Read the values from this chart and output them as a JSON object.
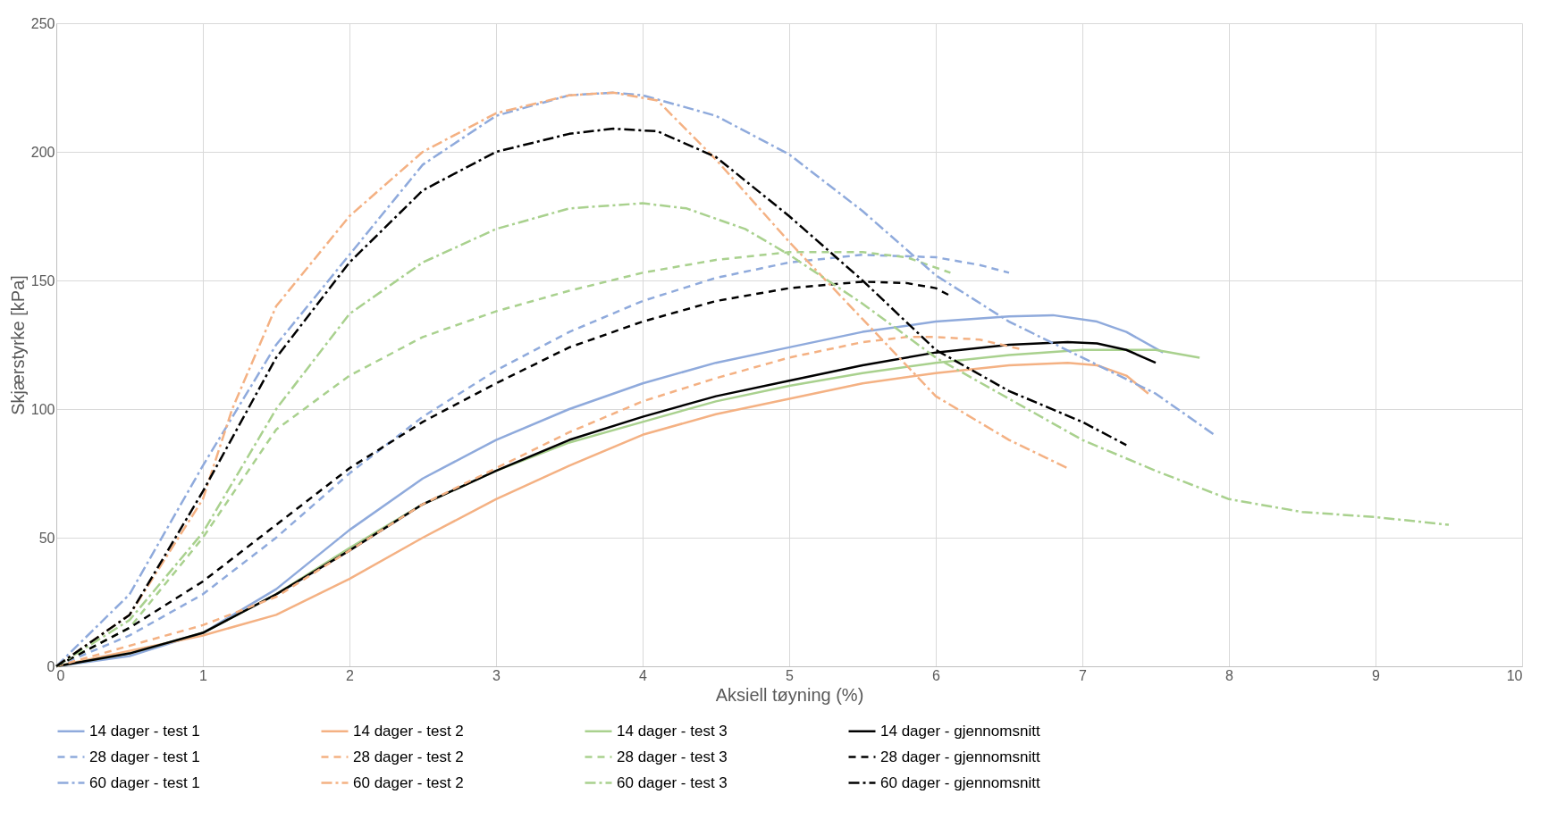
{
  "chart_data": {
    "type": "line",
    "xlabel": "Aksiell tøyning (%)",
    "ylabel": "Skjærstyrke [kPa]",
    "xlim": [
      0,
      10
    ],
    "xticks": [
      0,
      1,
      2,
      3,
      4,
      5,
      6,
      7,
      8,
      9,
      10
    ],
    "ylim": [
      0,
      250
    ],
    "yticks": [
      0,
      50,
      100,
      150,
      200,
      250
    ],
    "grid": true,
    "legend": "bottom",
    "series": [
      {
        "name": "14 dager - test 1",
        "color": "#8faadc",
        "line_style": "solid",
        "x": [
          0,
          0.5,
          1,
          1.5,
          2,
          2.5,
          3,
          3.5,
          4,
          4.5,
          5,
          5.5,
          6,
          6.5,
          6.8,
          7.1,
          7.3,
          7.55
        ],
        "values": [
          0,
          4,
          13,
          30,
          53,
          73,
          88,
          100,
          110,
          118,
          124,
          130,
          134,
          136,
          136.5,
          134,
          130,
          122
        ]
      },
      {
        "name": "14 dager - test 2",
        "color": "#f4b183",
        "line_style": "solid",
        "x": [
          0,
          0.5,
          1,
          1.5,
          2,
          2.5,
          3,
          3.5,
          4,
          4.5,
          5,
          5.5,
          6,
          6.5,
          6.9,
          7.1,
          7.3,
          7.45
        ],
        "values": [
          0,
          6,
          12,
          20,
          34,
          50,
          65,
          78,
          90,
          98,
          104,
          110,
          114,
          117,
          118,
          117,
          113,
          106
        ]
      },
      {
        "name": "14 dager - test 3",
        "color": "#a9d18e",
        "line_style": "solid",
        "x": [
          0,
          0.5,
          1,
          1.5,
          2,
          2.5,
          3,
          3.5,
          4,
          4.5,
          5,
          5.5,
          6,
          6.5,
          7,
          7.5,
          7.8
        ],
        "values": [
          0,
          5,
          13,
          28,
          46,
          63,
          76,
          87,
          95,
          103,
          109,
          114,
          118,
          121,
          123,
          123,
          120
        ]
      },
      {
        "name": "14 dager - gjennomsnitt",
        "color": "#000000",
        "line_style": "solid",
        "x": [
          0,
          0.5,
          1,
          1.5,
          2,
          2.5,
          3,
          3.5,
          4,
          4.5,
          5,
          5.5,
          6,
          6.5,
          6.9,
          7.1,
          7.3,
          7.5
        ],
        "values": [
          0,
          5,
          13,
          28,
          45,
          63,
          76,
          88,
          97,
          105,
          111,
          117,
          122,
          125,
          126,
          125.5,
          123,
          118
        ]
      },
      {
        "name": "28 dager - test 1",
        "color": "#8faadc",
        "line_style": "dashed",
        "x": [
          0,
          0.5,
          1,
          1.5,
          2,
          2.5,
          3,
          3.5,
          4,
          4.5,
          5,
          5.5,
          6,
          6.3,
          6.5
        ],
        "values": [
          0,
          12,
          28,
          50,
          75,
          97,
          115,
          130,
          142,
          151,
          157,
          160,
          159,
          156,
          153
        ]
      },
      {
        "name": "28 dager - test 2",
        "color": "#f4b183",
        "line_style": "dashed",
        "x": [
          0,
          0.5,
          1,
          1.5,
          2,
          2.5,
          3,
          3.5,
          4,
          4.5,
          5,
          5.5,
          5.8,
          6,
          6.3,
          6.6
        ],
        "values": [
          0,
          8,
          16,
          27,
          45,
          63,
          77,
          91,
          103,
          112,
          120,
          126,
          128,
          128,
          127,
          123
        ]
      },
      {
        "name": "28 dager - test 3",
        "color": "#a9d18e",
        "line_style": "dashed",
        "x": [
          0,
          0.5,
          1,
          1.5,
          2,
          2.5,
          3,
          3.5,
          4,
          4.5,
          5,
          5.5,
          5.8,
          6.1
        ],
        "values": [
          0,
          15,
          50,
          92,
          113,
          128,
          138,
          146,
          153,
          158,
          161,
          161,
          159,
          153
        ]
      },
      {
        "name": "28 dager - gjennomsnitt",
        "color": "#000000",
        "line_style": "dashed",
        "x": [
          0,
          0.5,
          1,
          1.5,
          2,
          2.5,
          3,
          3.5,
          4,
          4.5,
          5,
          5.5,
          5.8,
          6,
          6.1
        ],
        "values": [
          0,
          15,
          33,
          55,
          77,
          95,
          110,
          124,
          134,
          142,
          147,
          149.5,
          149,
          147,
          144
        ]
      },
      {
        "name": "60 dager - test 1",
        "color": "#8faadc",
        "line_style": "dashdot",
        "x": [
          0,
          0.5,
          1,
          1.5,
          2,
          2.5,
          3,
          3.5,
          3.8,
          4,
          4.5,
          5,
          5.5,
          6,
          6.5,
          7,
          7.5,
          7.9
        ],
        "values": [
          0,
          28,
          78,
          125,
          160,
          195,
          214,
          222,
          223,
          222,
          214,
          199,
          177,
          152,
          134,
          120,
          106,
          90
        ]
      },
      {
        "name": "60 dager - test 2",
        "color": "#f4b183",
        "line_style": "dashdot",
        "x": [
          0,
          0.5,
          1,
          1.2,
          1.5,
          2,
          2.5,
          3,
          3.5,
          3.8,
          4.1,
          4.5,
          5,
          5.5,
          6,
          6.5,
          6.9
        ],
        "values": [
          0,
          20,
          65,
          100,
          140,
          175,
          200,
          215,
          222,
          223,
          220,
          197,
          165,
          135,
          105,
          88,
          77
        ]
      },
      {
        "name": "60 dager - test 3",
        "color": "#a9d18e",
        "line_style": "dashdot",
        "x": [
          0,
          0.5,
          1,
          1.5,
          2,
          2.5,
          3,
          3.5,
          4,
          4.3,
          4.7,
          5,
          5.5,
          6,
          6.5,
          7,
          7.5,
          8,
          8.5,
          9,
          9.5
        ],
        "values": [
          0,
          18,
          52,
          100,
          137,
          157,
          170,
          178,
          180,
          178,
          170,
          160,
          141,
          120,
          104,
          88,
          76,
          65,
          60,
          58,
          55
        ]
      },
      {
        "name": "60 dager - gjennomsnitt",
        "color": "#000000",
        "line_style": "dashdot",
        "x": [
          0,
          0.5,
          1,
          1.5,
          2,
          2.5,
          3,
          3.5,
          3.8,
          4.1,
          4.5,
          5,
          5.5,
          6,
          6.5,
          7,
          7.3
        ],
        "values": [
          0,
          20,
          68,
          120,
          157,
          185,
          200,
          207,
          209,
          208,
          198,
          175,
          150,
          123,
          107,
          95,
          86
        ]
      }
    ]
  }
}
